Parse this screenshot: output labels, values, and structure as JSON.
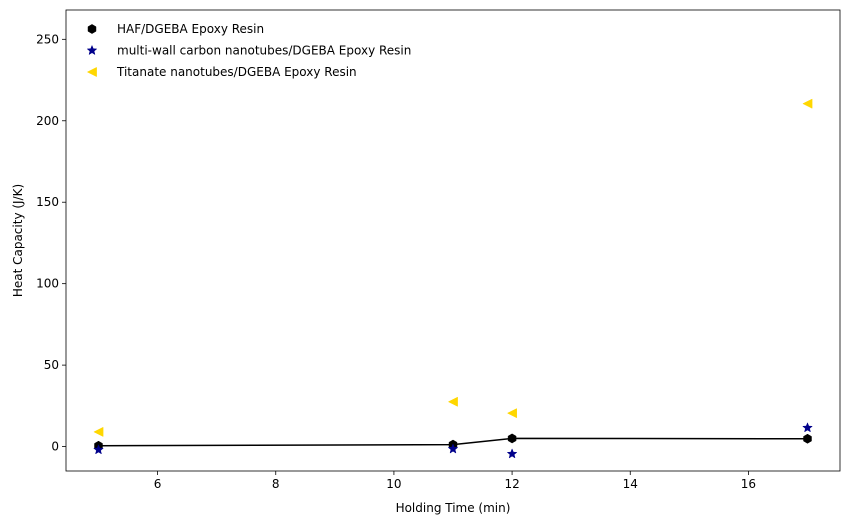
{
  "chart_data": {
    "type": "scatter",
    "title": "",
    "xlabel": "Holding Time (min)",
    "ylabel": "Heat Capacity (J/K)",
    "xlim": [
      4.45,
      17.55
    ],
    "ylim": [
      -15,
      268
    ],
    "xticks": [
      6,
      8,
      10,
      12,
      14,
      16
    ],
    "yticks": [
      0,
      50,
      100,
      150,
      200,
      250
    ],
    "grid": false,
    "legend_position": "top-left",
    "series": [
      {
        "name": "HAF/DGEBA Epoxy Resin",
        "marker": "hexagon",
        "color": "#000000",
        "connected_line": true,
        "x": [
          5,
          11,
          12,
          17
        ],
        "y": [
          0.5,
          1.2,
          5.0,
          4.8
        ]
      },
      {
        "name": "multi-wall carbon nanotubes/DGEBA Epoxy Resin",
        "marker": "star",
        "color": "#00008b",
        "connected_line": false,
        "x": [
          5,
          11,
          12,
          17
        ],
        "y": [
          -2.0,
          -1.5,
          -4.5,
          11.5
        ]
      },
      {
        "name": "Titanate nanotubes/DGEBA Epoxy Resin",
        "marker": "triangle-left",
        "color": "#ffd700",
        "connected_line": false,
        "x": [
          5,
          11,
          12,
          17
        ],
        "y": [
          9.0,
          27.5,
          20.5,
          210.5
        ]
      }
    ]
  }
}
